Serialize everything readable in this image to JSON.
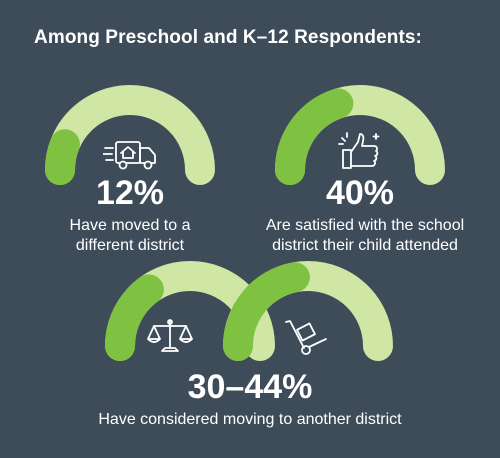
{
  "heading": "Among Preschool and K–12 Respondents:",
  "colors": {
    "background": "#3e4c5a",
    "track": "#cfe6a4",
    "fill": "#7fc241",
    "text": "#ffffff"
  },
  "stats": [
    {
      "value": "12%",
      "description": "Have moved to a different district",
      "line1": "Have moved to a",
      "line2": "different district",
      "icon": "moving-truck-icon",
      "fill_fraction": 0.12
    },
    {
      "value": "40%",
      "description": "Are satisfied with the school district their child attended",
      "line1": "Are satisfied with the school",
      "line2": "district their child attended",
      "icon": "thumbs-up-icon",
      "fill_fraction": 0.4
    },
    {
      "value": "30–44%",
      "description": "Have considered moving to another district",
      "line1": "Have considered moving to another district",
      "icons": [
        "scales-icon",
        "hand-truck-icon"
      ],
      "fill_fractions": [
        0.3,
        0.44
      ]
    }
  ]
}
